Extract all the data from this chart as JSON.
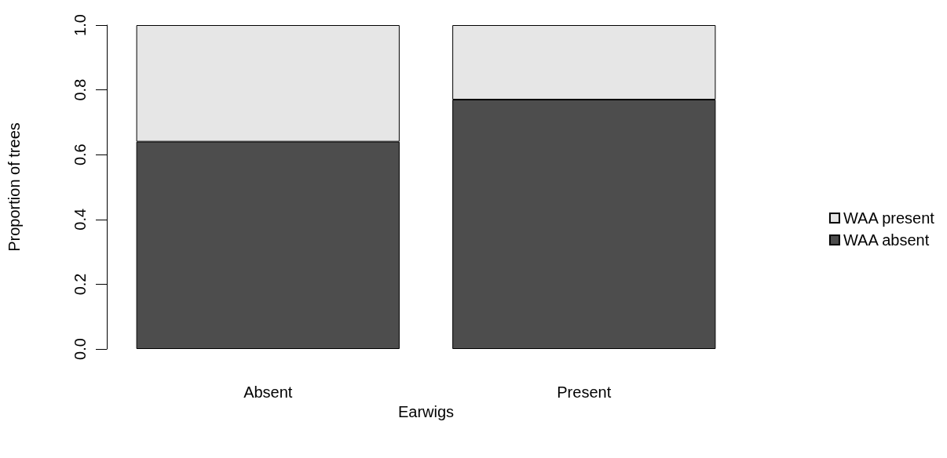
{
  "chart_data": {
    "type": "bar",
    "stacked": true,
    "xlabel": "Earwigs",
    "ylabel": "Proportion of trees",
    "categories": [
      "Absent",
      "Present"
    ],
    "series": [
      {
        "name": "WAA absent",
        "color": "#4d4d4d",
        "values": [
          0.64,
          0.77
        ]
      },
      {
        "name": "WAA present",
        "color": "#e6e6e6",
        "values": [
          0.36,
          0.23
        ]
      }
    ],
    "ylim": [
      0,
      1
    ],
    "yticks": [
      {
        "value": 0,
        "label": "0.0"
      },
      0.2,
      0.4,
      0.6,
      0.8,
      {
        "value": 1,
        "label": "1.0"
      }
    ],
    "legend": "right",
    "grid": false
  }
}
